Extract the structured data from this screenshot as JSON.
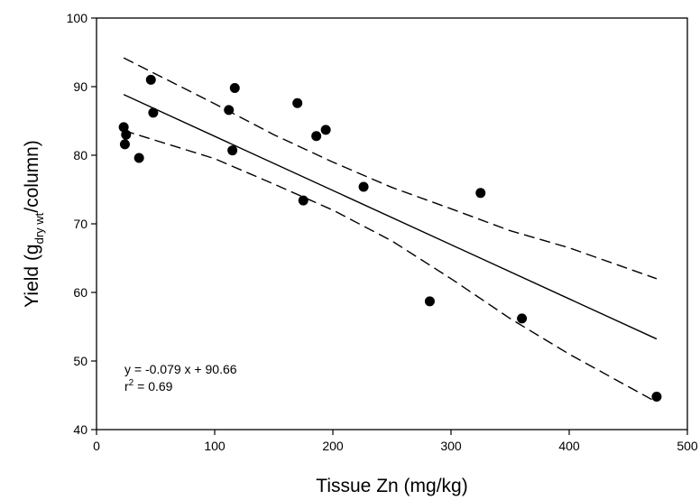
{
  "chart_data": {
    "type": "scatter",
    "title": "",
    "xlabel": "Tissue Zn (mg/kg)",
    "ylabel_main": "Yield (g",
    "ylabel_sub": "dry wt",
    "ylabel_tail": "/column)",
    "xlim": [
      0,
      500
    ],
    "ylim": [
      40,
      100
    ],
    "x_ticks": [
      0,
      100,
      200,
      300,
      400,
      500
    ],
    "y_ticks": [
      40,
      50,
      60,
      70,
      80,
      90,
      100
    ],
    "grid": false,
    "points": [
      {
        "x": 23,
        "y": 84.1
      },
      {
        "x": 25,
        "y": 83.0
      },
      {
        "x": 24,
        "y": 81.6
      },
      {
        "x": 36,
        "y": 79.6
      },
      {
        "x": 46,
        "y": 91.0
      },
      {
        "x": 48,
        "y": 86.2
      },
      {
        "x": 112,
        "y": 86.6
      },
      {
        "x": 117,
        "y": 89.8
      },
      {
        "x": 115,
        "y": 80.7
      },
      {
        "x": 170,
        "y": 87.6
      },
      {
        "x": 175,
        "y": 73.4
      },
      {
        "x": 186,
        "y": 82.8
      },
      {
        "x": 194,
        "y": 83.7
      },
      {
        "x": 226,
        "y": 75.4
      },
      {
        "x": 282,
        "y": 58.7
      },
      {
        "x": 325,
        "y": 74.5
      },
      {
        "x": 360,
        "y": 56.2
      },
      {
        "x": 474,
        "y": 44.8
      }
    ],
    "regression": {
      "slope": -0.079,
      "intercept": 90.66,
      "x_range": [
        23,
        474
      ]
    },
    "confidence_upper": [
      {
        "x": 23,
        "y": 94.2
      },
      {
        "x": 100,
        "y": 87.5
      },
      {
        "x": 150,
        "y": 83.0
      },
      {
        "x": 200,
        "y": 79.0
      },
      {
        "x": 250,
        "y": 75.3
      },
      {
        "x": 300,
        "y": 72.2
      },
      {
        "x": 350,
        "y": 69.0
      },
      {
        "x": 400,
        "y": 66.5
      },
      {
        "x": 474,
        "y": 62.0
      }
    ],
    "confidence_lower": [
      {
        "x": 23,
        "y": 83.6
      },
      {
        "x": 100,
        "y": 79.5
      },
      {
        "x": 150,
        "y": 75.8
      },
      {
        "x": 200,
        "y": 72.0
      },
      {
        "x": 250,
        "y": 67.5
      },
      {
        "x": 300,
        "y": 62.0
      },
      {
        "x": 350,
        "y": 56.2
      },
      {
        "x": 400,
        "y": 51.0
      },
      {
        "x": 474,
        "y": 44.0
      }
    ],
    "equation": "y = -0.079 x + 90.66",
    "r2_prefix": "r",
    "r2_sup": "2",
    "r2_suffix": " = 0.69"
  }
}
